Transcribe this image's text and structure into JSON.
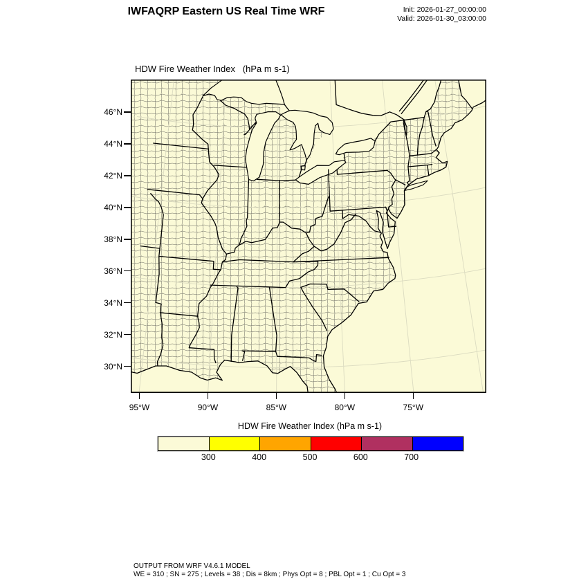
{
  "header": {
    "title": "IWFAQRP Eastern US Real Time WRF",
    "init": "Init: 2026-01-27_00:00:00",
    "valid": "Valid: 2026-01-30_03:00:00"
  },
  "map": {
    "title": "HDW Fire Weather Index   (hPa m s-1)",
    "land_color": "#FBFAD7",
    "county_line_color": "#3f3f3f",
    "graticule_color": "#DBDBC0",
    "border_color": "#000000"
  },
  "axes": {
    "lat": {
      "labels": [
        "46°N",
        "44°N",
        "42°N",
        "40°N",
        "38°N",
        "36°N",
        "34°N",
        "32°N",
        "30°N"
      ],
      "values": [
        46,
        44,
        42,
        40,
        38,
        36,
        34,
        32,
        30
      ]
    },
    "lon": {
      "labels": [
        "95°W",
        "90°W",
        "85°W",
        "80°W",
        "75°W"
      ],
      "values": [
        95,
        90,
        85,
        80,
        75
      ]
    }
  },
  "colorbar": {
    "title": "HDW Fire Weather Index (hPa m s-1)",
    "tick_labels": [
      "300",
      "400",
      "500",
      "600",
      "700"
    ],
    "segment_colors": [
      "#FBFAD7",
      "#FFFF00",
      "#FFA500",
      "#FF0000",
      "#B03060",
      "#0000FF"
    ]
  },
  "footer": {
    "line1": "OUTPUT FROM WRF V4.6.1 MODEL",
    "line2": "WE = 310 ; SN = 275 ; Levels = 38 ; Dis = 8km ; Phys Opt = 8 ; PBL Opt = 1 ; Cu Opt = 3"
  },
  "chart_data": {
    "type": "heatmap",
    "title": "HDW Fire Weather Index (hPa m s-1)",
    "levels": [
      300,
      400,
      500,
      600,
      700
    ],
    "colors": [
      "#FBFAD7",
      "#FFFF00",
      "#FFA500",
      "#FF0000",
      "#B03060",
      "#0000FF"
    ],
    "field_summary": "Entire plotted domain falls in the lowest bin (< 300); map rendered uniformly in the first colorbar color",
    "extent": {
      "lon_ticks_W": [
        95,
        90,
        85,
        80,
        75
      ],
      "lat_ticks_N": [
        46,
        44,
        42,
        40,
        38,
        36,
        34,
        32,
        30
      ]
    }
  }
}
